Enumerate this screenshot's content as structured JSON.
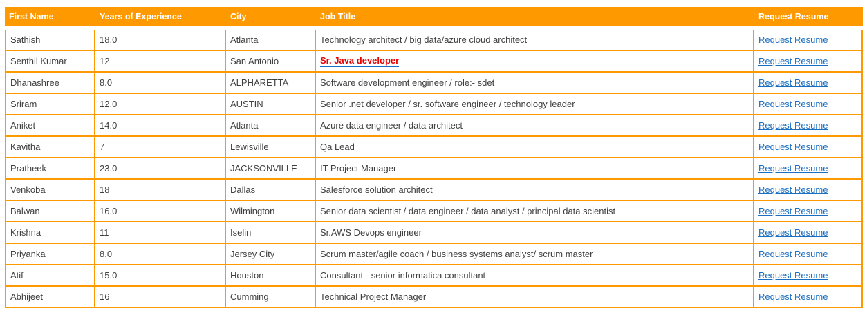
{
  "colors": {
    "header_bg": "#FF9900",
    "border": "#FF9900",
    "header_text": "#FFFFFF",
    "cell_text": "#404040",
    "link_blue": "#1B6FC2",
    "job_link_red": "#E60000"
  },
  "table": {
    "columns": [
      {
        "key": "first_name",
        "label": "First Name"
      },
      {
        "key": "years",
        "label": "Years of Experience"
      },
      {
        "key": "city",
        "label": "City"
      },
      {
        "key": "job_title",
        "label": "Job Title"
      },
      {
        "key": "request",
        "label": "Request Resume"
      }
    ],
    "request_link_label": "Request Resume",
    "rows": [
      {
        "first_name": "Sathish",
        "years": "18.0",
        "city": "Atlanta",
        "job_title": "Technology architect / big data/azure cloud architect",
        "job_title_is_link": false
      },
      {
        "first_name": "Senthil Kumar",
        "years": "12",
        "city": "San Antonio",
        "job_title": "Sr. Java developer",
        "job_title_is_link": true
      },
      {
        "first_name": "Dhanashree",
        "years": "8.0",
        "city": "ALPHARETTA",
        "job_title": "Software development engineer / role:- sdet",
        "job_title_is_link": false
      },
      {
        "first_name": "Sriram",
        "years": "12.0",
        "city": "AUSTIN",
        "job_title": "Senior .net developer / sr. software engineer / technology leader",
        "job_title_is_link": false
      },
      {
        "first_name": "Aniket",
        "years": "14.0",
        "city": "Atlanta",
        "job_title": "Azure data engineer / data architect",
        "job_title_is_link": false
      },
      {
        "first_name": "Kavitha",
        "years": "7",
        "city": "Lewisville",
        "job_title": "Qa Lead",
        "job_title_is_link": false
      },
      {
        "first_name": "Pratheek",
        "years": "23.0",
        "city": "JACKSONVILLE",
        "job_title": "IT Project Manager",
        "job_title_is_link": false
      },
      {
        "first_name": "Venkoba",
        "years": "18",
        "city": "Dallas",
        "job_title": "Salesforce solution architect",
        "job_title_is_link": false
      },
      {
        "first_name": "Balwan",
        "years": "16.0",
        "city": "Wilmington",
        "job_title": "Senior data scientist / data engineer / data analyst / principal data scientist",
        "job_title_is_link": false
      },
      {
        "first_name": "Krishna",
        "years": "11",
        "city": "Iselin",
        "job_title": "Sr.AWS Devops engineer",
        "job_title_is_link": false
      },
      {
        "first_name": "Priyanka",
        "years": "8.0",
        "city": "Jersey City",
        "job_title": "Scrum master/agile coach / business systems analyst/ scrum master",
        "job_title_is_link": false
      },
      {
        "first_name": "Atif",
        "years": "15.0",
        "city": "Houston",
        "job_title": "Consultant - senior informatica consultant",
        "job_title_is_link": false
      },
      {
        "first_name": "Abhijeet",
        "years": "16",
        "city": "Cumming",
        "job_title": "Technical Project Manager",
        "job_title_is_link": false
      }
    ]
  }
}
